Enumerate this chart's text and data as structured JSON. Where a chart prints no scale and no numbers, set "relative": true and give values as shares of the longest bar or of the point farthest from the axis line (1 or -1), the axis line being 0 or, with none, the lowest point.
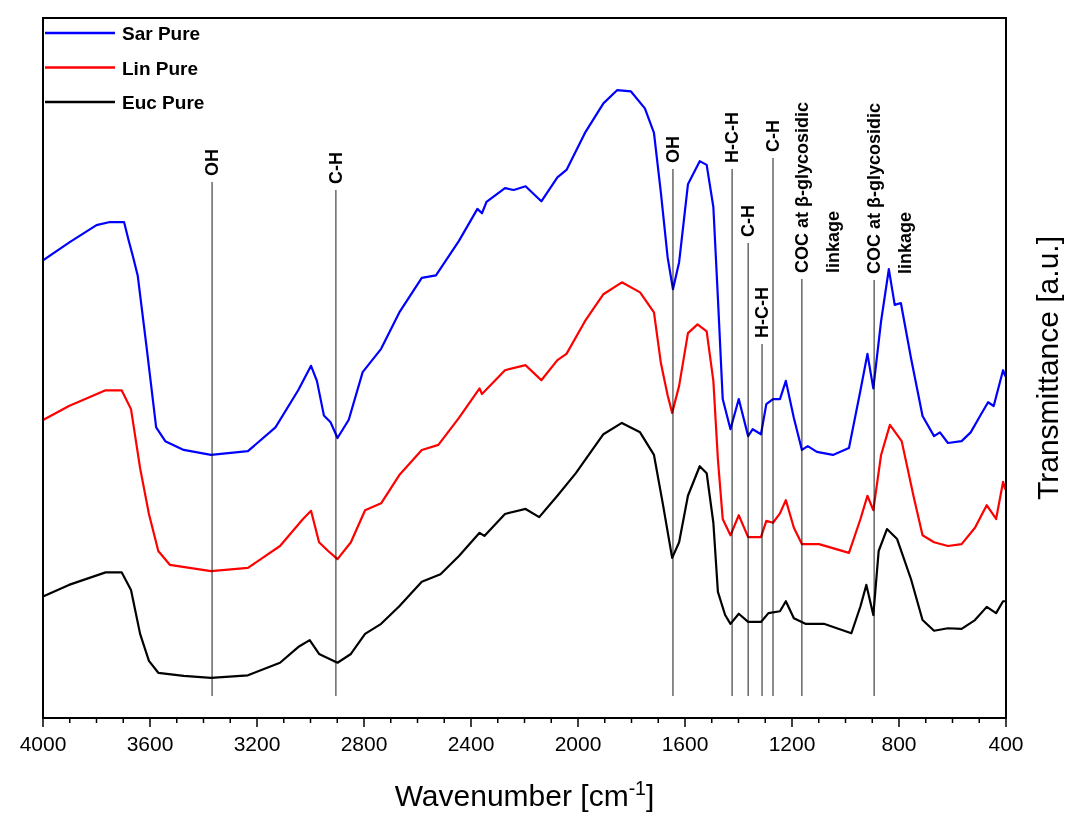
{
  "chart_data": {
    "type": "line",
    "xlabel": "Wavenumber [cm$^{-1}$]",
    "ylabel": "Transmittance [a.u.]",
    "relative": true,
    "legend": "top left",
    "xlim": [
      4000,
      400
    ],
    "xticks": [
      4000,
      {
        "value": 3900,
        "label": null
      },
      {
        "value": 3800,
        "label": null
      },
      {
        "value": 3700,
        "label": null
      },
      3600,
      {
        "value": 3500,
        "label": null
      },
      {
        "value": 3400,
        "label": null
      },
      {
        "value": 3300,
        "label": null
      },
      3200,
      {
        "value": 3100,
        "label": null
      },
      {
        "value": 3000,
        "label": null
      },
      {
        "value": 2900,
        "label": null
      },
      2800,
      {
        "value": 2700,
        "label": null
      },
      {
        "value": 2600,
        "label": null
      },
      {
        "value": 2500,
        "label": null
      },
      2400,
      {
        "value": 2300,
        "label": null
      },
      {
        "value": 2200,
        "label": null
      },
      {
        "value": 2100,
        "label": null
      },
      2000,
      {
        "value": 1900,
        "label": null
      },
      {
        "value": 1800,
        "label": null
      },
      {
        "value": 1700,
        "label": null
      },
      1600,
      {
        "value": 1500,
        "label": null
      },
      {
        "value": 1400,
        "label": null
      },
      {
        "value": 1300,
        "label": null
      },
      1200,
      {
        "value": 1100,
        "label": null
      },
      {
        "value": 1000,
        "label": null
      },
      {
        "value": 900,
        "label": null
      },
      800,
      {
        "value": 700,
        "label": null
      },
      {
        "value": 600,
        "label": null
      },
      {
        "value": 500,
        "label": null
      },
      400
    ],
    "series": [
      {
        "name": "Sar Pure",
        "color": "#0000ff",
        "x": [
          4000,
          3900,
          3800,
          3750,
          3697,
          3680,
          3663,
          3646,
          3612,
          3577,
          3543,
          3474,
          3372,
          3234,
          3131,
          3046,
          2998,
          2976,
          2950,
          2925,
          2899,
          2857,
          2805,
          2736,
          2668,
          2584,
          2531,
          2445,
          2376,
          2359,
          2342,
          2273,
          2240,
          2196,
          2154,
          2137,
          2077,
          2043,
          1974,
          1905,
          1854,
          1802,
          1750,
          1716,
          1690,
          1665,
          1645,
          1622,
          1589,
          1545,
          1519,
          1494,
          1477,
          1459,
          1430,
          1399,
          1364,
          1347,
          1316,
          1296,
          1271,
          1245,
          1223,
          1193,
          1163,
          1141,
          1107,
          1047,
          987,
          944,
          918,
          896,
          867,
          838,
          816,
          793,
          755,
          712,
          669,
          647,
          617,
          566,
          532,
          497,
          467,
          446,
          411,
          403
        ],
        "values": [
          0.729,
          0.758,
          0.785,
          0.79,
          0.79,
          0.761,
          0.734,
          0.705,
          0.588,
          0.463,
          0.441,
          0.427,
          0.419,
          0.425,
          0.463,
          0.522,
          0.561,
          0.537,
          0.482,
          0.471,
          0.446,
          0.475,
          0.551,
          0.588,
          0.646,
          0.701,
          0.705,
          0.76,
          0.811,
          0.804,
          0.822,
          0.844,
          0.841,
          0.847,
          0.83,
          0.823,
          0.861,
          0.873,
          0.932,
          0.979,
          1.0,
          0.998,
          0.971,
          0.932,
          0.836,
          0.734,
          0.683,
          0.726,
          0.85,
          0.887,
          0.881,
          0.814,
          0.669,
          0.508,
          0.46,
          0.508,
          0.449,
          0.46,
          0.452,
          0.5,
          0.508,
          0.508,
          0.537,
          0.478,
          0.427,
          0.433,
          0.424,
          0.419,
          0.43,
          0.522,
          0.58,
          0.525,
          0.632,
          0.715,
          0.658,
          0.661,
          0.573,
          0.481,
          0.449,
          0.455,
          0.438,
          0.441,
          0.455,
          0.481,
          0.503,
          0.497,
          0.554,
          0.545
        ]
      },
      {
        "name": "Lin Pure",
        "color": "#ff0000",
        "x": [
          3998,
          3903,
          3766,
          3706,
          3671,
          3637,
          3604,
          3569,
          3526,
          3372,
          3234,
          3114,
          3028,
          2998,
          2968,
          2934,
          2899,
          2849,
          2796,
          2736,
          2668,
          2584,
          2522,
          2445,
          2368,
          2359,
          2273,
          2196,
          2154,
          2137,
          2077,
          2043,
          1974,
          1905,
          1836,
          1768,
          1716,
          1690,
          1665,
          1648,
          1622,
          1589,
          1553,
          1519,
          1494,
          1477,
          1459,
          1430,
          1399,
          1364,
          1316,
          1296,
          1271,
          1245,
          1223,
          1193,
          1163,
          1099,
          987,
          944,
          918,
          896,
          867,
          834,
          790,
          746,
          712,
          669,
          617,
          566,
          516,
          472,
          437,
          411,
          403
        ],
        "values": [
          0.475,
          0.497,
          0.522,
          0.522,
          0.492,
          0.398,
          0.325,
          0.266,
          0.244,
          0.234,
          0.239,
          0.274,
          0.317,
          0.33,
          0.28,
          0.266,
          0.253,
          0.28,
          0.331,
          0.342,
          0.387,
          0.427,
          0.435,
          0.478,
          0.525,
          0.516,
          0.554,
          0.562,
          0.545,
          0.538,
          0.57,
          0.58,
          0.632,
          0.675,
          0.694,
          0.678,
          0.646,
          0.565,
          0.514,
          0.486,
          0.529,
          0.613,
          0.627,
          0.616,
          0.537,
          0.412,
          0.317,
          0.291,
          0.323,
          0.288,
          0.288,
          0.314,
          0.311,
          0.326,
          0.347,
          0.303,
          0.277,
          0.277,
          0.263,
          0.317,
          0.354,
          0.331,
          0.419,
          0.467,
          0.441,
          0.354,
          0.291,
          0.28,
          0.274,
          0.277,
          0.303,
          0.339,
          0.317,
          0.376,
          0.365
        ]
      },
      {
        "name": "Euc Pure",
        "color": "#000000",
        "x": [
          3998,
          3903,
          3766,
          3706,
          3671,
          3637,
          3604,
          3569,
          3474,
          3372,
          3234,
          3114,
          3046,
          3003,
          2968,
          2899,
          2849,
          2796,
          2736,
          2668,
          2584,
          2514,
          2445,
          2368,
          2350,
          2273,
          2196,
          2145,
          2077,
          2008,
          1905,
          1836,
          1768,
          1716,
          1682,
          1648,
          1622,
          1589,
          1545,
          1519,
          1494,
          1477,
          1450,
          1430,
          1399,
          1364,
          1316,
          1288,
          1245,
          1223,
          1193,
          1150,
          1081,
          978,
          944,
          922,
          896,
          876,
          845,
          807,
          755,
          712,
          669,
          617,
          566,
          516,
          472,
          437,
          411,
          403
        ],
        "values": [
          0.194,
          0.212,
          0.232,
          0.232,
          0.204,
          0.134,
          0.091,
          0.072,
          0.067,
          0.064,
          0.068,
          0.088,
          0.113,
          0.124,
          0.102,
          0.088,
          0.102,
          0.134,
          0.15,
          0.178,
          0.217,
          0.229,
          0.258,
          0.295,
          0.29,
          0.325,
          0.333,
          0.32,
          0.354,
          0.39,
          0.452,
          0.47,
          0.455,
          0.419,
          0.339,
          0.255,
          0.28,
          0.354,
          0.401,
          0.39,
          0.311,
          0.201,
          0.164,
          0.15,
          0.166,
          0.153,
          0.153,
          0.167,
          0.17,
          0.186,
          0.159,
          0.15,
          0.15,
          0.135,
          0.178,
          0.212,
          0.164,
          0.266,
          0.301,
          0.285,
          0.221,
          0.156,
          0.139,
          0.143,
          0.142,
          0.156,
          0.177,
          0.167,
          0.186,
          0.186
        ]
      }
    ],
    "ref_lines": [
      {
        "axis": "x",
        "value": 3368,
        "label": "OH"
      },
      {
        "axis": "x",
        "value": 2905,
        "label": "C-H"
      },
      {
        "axis": "x",
        "value": 1645,
        "label": "OH"
      },
      {
        "axis": "x",
        "value": 1424,
        "label": "H-C-H"
      },
      {
        "axis": "x",
        "value": 1364,
        "label": "C-H"
      },
      {
        "axis": "x",
        "value": 1312,
        "label": "H-C-H"
      },
      {
        "axis": "x",
        "value": 1271,
        "label": "C-H"
      },
      {
        "axis": "x",
        "value": 1163,
        "label": "COC at β-glycosidic linkage"
      },
      {
        "axis": "x",
        "value": 893,
        "label": "COC at β-glycosidic linkage"
      }
    ]
  }
}
